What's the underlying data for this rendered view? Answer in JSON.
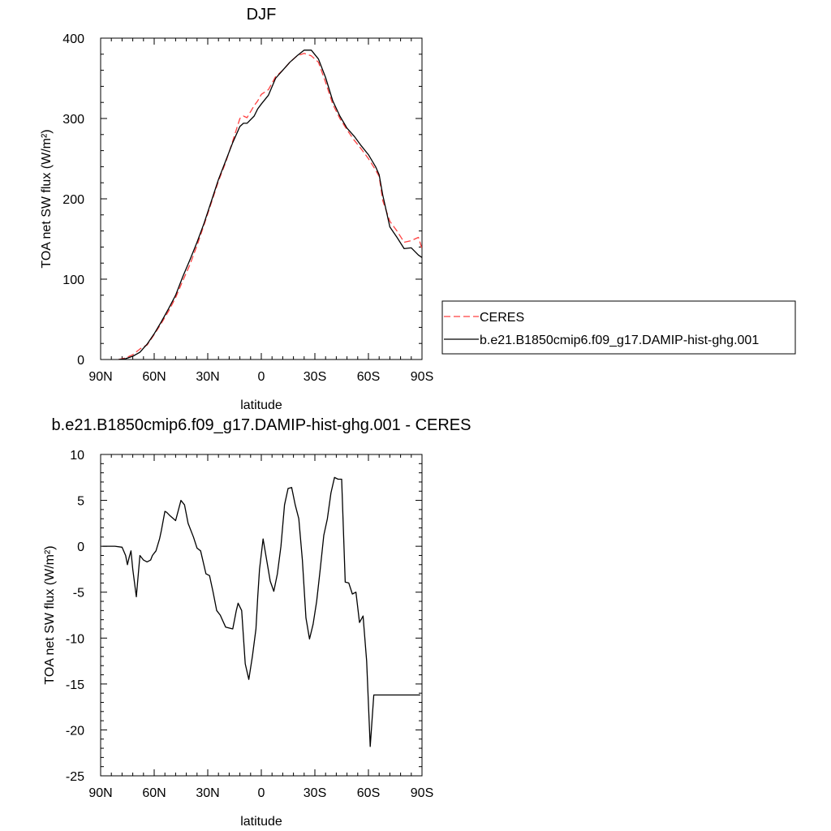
{
  "chart_data": [
    {
      "type": "line",
      "title": "DJF",
      "xlabel": "latitude",
      "ylabel": "TOA net SW flux (W/m²)",
      "xlim": [
        90,
        -90
      ],
      "ylim": [
        0,
        400
      ],
      "xticks": [
        {
          "value": 90,
          "label": "90N"
        },
        {
          "value": 60,
          "label": "60N"
        },
        {
          "value": 30,
          "label": "30N"
        },
        {
          "value": 0,
          "label": "0"
        },
        {
          "value": -30,
          "label": "30S"
        },
        {
          "value": -60,
          "label": "60S"
        },
        {
          "value": -90,
          "label": "90S"
        }
      ],
      "yticks": [
        {
          "value": 0,
          "label": "0"
        },
        {
          "value": 100,
          "label": "100"
        },
        {
          "value": 200,
          "label": "200"
        },
        {
          "value": 300,
          "label": "300"
        },
        {
          "value": 400,
          "label": "400"
        }
      ],
      "legend_position": "right",
      "series": [
        {
          "name": "CERES",
          "color": "#ff4040",
          "dash": "dashed",
          "x": [
            80,
            76,
            72,
            68,
            66,
            64,
            60,
            56,
            52,
            48,
            44,
            40,
            36,
            32,
            28,
            24,
            20,
            16,
            12,
            10,
            8,
            4,
            2,
            0,
            -4,
            -8,
            -12,
            -16,
            -20,
            -24,
            -28,
            -32,
            -36,
            -40,
            -44,
            -48,
            -52,
            -56,
            -60,
            -64,
            -66,
            -68,
            -72,
            -76,
            -80,
            -84,
            -88,
            -90
          ],
          "y": [
            0,
            2,
            6,
            13,
            16,
            18,
            31,
            45,
            60,
            77,
            98,
            118,
            142,
            168,
            195,
            222,
            245,
            272,
            300,
            303,
            301,
            316,
            322,
            330,
            336,
            352,
            360,
            370,
            378,
            381,
            378,
            370,
            345,
            318,
            300,
            286,
            273,
            262,
            250,
            236,
            228,
            198,
            172,
            160,
            146,
            148,
            152,
            138
          ]
        },
        {
          "name": "b.e21.B1850cmip6.f09_g17.DAMIP-hist-ghg.001",
          "color": "#000000",
          "dash": "solid",
          "x": [
            80,
            76,
            72,
            68,
            66,
            64,
            60,
            56,
            52,
            48,
            44,
            40,
            36,
            32,
            28,
            24,
            20,
            16,
            12,
            10,
            8,
            4,
            2,
            0,
            -4,
            -8,
            -12,
            -16,
            -20,
            -24,
            -28,
            -32,
            -36,
            -40,
            -44,
            -48,
            -52,
            -56,
            -60,
            -64,
            -66,
            -68,
            -72,
            -76,
            -80,
            -84,
            -88,
            -90
          ],
          "y": [
            0,
            1,
            4,
            9,
            14,
            19,
            32,
            47,
            63,
            80,
            103,
            124,
            146,
            170,
            197,
            224,
            247,
            270,
            290,
            294,
            294,
            303,
            312,
            318,
            329,
            350,
            360,
            370,
            378,
            385,
            385,
            374,
            351,
            322,
            303,
            288,
            278,
            266,
            255,
            240,
            230,
            205,
            165,
            152,
            138,
            139,
            130,
            127
          ]
        }
      ]
    },
    {
      "type": "line",
      "title": "b.e21.B1850cmip6.f09_g17.DAMIP-hist-ghg.001 - CERES",
      "xlabel": "latitude",
      "ylabel": "TOA net SW flux (W/m²)",
      "xlim": [
        90,
        -90
      ],
      "ylim": [
        -25,
        10
      ],
      "xticks": [
        {
          "value": 90,
          "label": "90N"
        },
        {
          "value": 60,
          "label": "60N"
        },
        {
          "value": 30,
          "label": "30N"
        },
        {
          "value": 0,
          "label": "0"
        },
        {
          "value": -30,
          "label": "30S"
        },
        {
          "value": -60,
          "label": "60S"
        },
        {
          "value": -90,
          "label": "90S"
        }
      ],
      "yticks": [
        {
          "value": 10,
          "label": "10"
        },
        {
          "value": 5,
          "label": "5"
        },
        {
          "value": 0,
          "label": "0"
        },
        {
          "value": -5,
          "label": "-5"
        },
        {
          "value": -10,
          "label": "-10"
        },
        {
          "value": -15,
          "label": "-15"
        },
        {
          "value": -20,
          "label": "-20"
        },
        {
          "value": -25,
          "label": "-25"
        }
      ],
      "series": [
        {
          "color": "#000000",
          "dash": "solid",
          "x": [
            89,
            86,
            82,
            78,
            76,
            75,
            74,
            73,
            72,
            70,
            68,
            66,
            64,
            62,
            61,
            59,
            57,
            56,
            54,
            53,
            51,
            48,
            45,
            43,
            41,
            38,
            36,
            34,
            31,
            29,
            27,
            25,
            23,
            20,
            16,
            14,
            13,
            11,
            9,
            7,
            5,
            3,
            2,
            1,
            -1,
            -3,
            -5,
            -7,
            -9,
            -11,
            -13,
            -15,
            -17,
            -19,
            -21,
            -23,
            -25,
            -27,
            -29,
            -31,
            -33,
            -35,
            -37,
            -39,
            -41,
            -43,
            -45,
            -47,
            -49,
            -51,
            -53,
            -55,
            -57,
            -59,
            -61,
            -63,
            -65,
            -67,
            -69,
            -71,
            -73,
            -75,
            -77,
            -79,
            -81,
            -83,
            -85,
            -87,
            -89
          ],
          "y": [
            0,
            0,
            0,
            -0.1,
            -1.0,
            -2.0,
            -1.2,
            -0.5,
            -2.5,
            -5.5,
            -1.0,
            -1.5,
            -1.7,
            -1.5,
            -1.0,
            -0.5,
            0.8,
            1.7,
            3.8,
            3.7,
            3.3,
            2.8,
            5.0,
            4.5,
            2.5,
            1.0,
            -0.2,
            -0.5,
            -3.0,
            -3.2,
            -5.0,
            -7.0,
            -7.5,
            -8.8,
            -9.0,
            -7.0,
            -6.2,
            -7.0,
            -12.8,
            -14.5,
            -12.0,
            -9.0,
            -5.5,
            -2.5,
            0.8,
            -1.5,
            -3.8,
            -4.9,
            -3.0,
            0.0,
            4.5,
            6.3,
            6.4,
            4.5,
            3.0,
            -1.5,
            -7.8,
            -10.1,
            -8.5,
            -6.0,
            -2.5,
            1.2,
            3.0,
            5.8,
            7.5,
            7.3,
            7.3,
            -3.9,
            -4.0,
            -5.2,
            -5.0,
            -8.3,
            -7.6,
            -12.5,
            -21.8,
            -16.2,
            -16.2,
            -16.2,
            -16.2,
            -16.2,
            -16.2,
            -16.2,
            -16.2,
            -16.2,
            -16.2,
            -16.2,
            -16.2,
            -16.2,
            -16.2
          ]
        }
      ]
    }
  ]
}
